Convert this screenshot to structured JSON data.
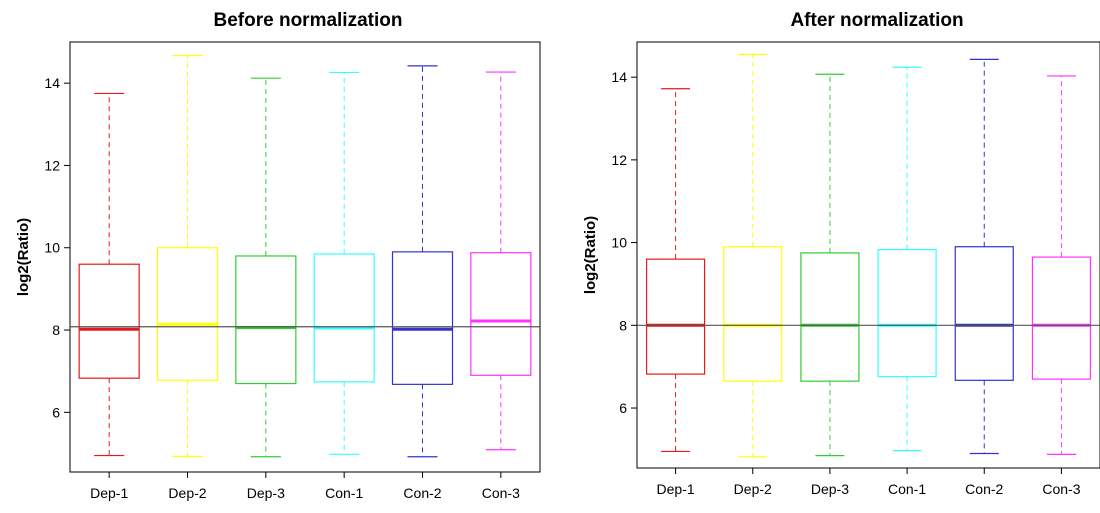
{
  "chart_data": [
    {
      "type": "box",
      "title": "Before normalization",
      "xlabel": "",
      "ylabel": "log2(Ratio)",
      "ylim": [
        4.55,
        15.0
      ],
      "yticks": [
        6,
        8,
        10,
        12,
        14
      ],
      "reference_line": 8.08,
      "categories": [
        "Dep-1",
        "Dep-2",
        "Dep-3",
        "Con-1",
        "Con-2",
        "Con-3"
      ],
      "colors": [
        "#e41a1c",
        "#ffff00",
        "#33cc33",
        "#33ffff",
        "#3333cc",
        "#ff33ff"
      ],
      "series": [
        {
          "min": 4.95,
          "q1": 6.83,
          "median": 8.02,
          "q3": 9.6,
          "max": 13.75
        },
        {
          "min": 4.93,
          "q1": 6.78,
          "median": 8.14,
          "q3": 10.0,
          "max": 14.67
        },
        {
          "min": 4.92,
          "q1": 6.7,
          "median": 8.06,
          "q3": 9.8,
          "max": 14.12
        },
        {
          "min": 4.98,
          "q1": 6.74,
          "median": 8.05,
          "q3": 9.85,
          "max": 14.26
        },
        {
          "min": 4.92,
          "q1": 6.68,
          "median": 8.02,
          "q3": 9.9,
          "max": 14.42
        },
        {
          "min": 5.09,
          "q1": 6.9,
          "median": 8.22,
          "q3": 9.88,
          "max": 14.27
        }
      ]
    },
    {
      "type": "box",
      "title": "After normalization",
      "xlabel": "",
      "ylabel": "log2(Ratio)",
      "ylim": [
        4.55,
        14.85
      ],
      "yticks": [
        6,
        8,
        10,
        12,
        14
      ],
      "reference_line": 8.0,
      "categories": [
        "Dep-1",
        "Dep-2",
        "Dep-3",
        "Con-1",
        "Con-2",
        "Con-3"
      ],
      "colors": [
        "#e41a1c",
        "#ffff00",
        "#33cc33",
        "#33ffff",
        "#3333cc",
        "#ff33ff"
      ],
      "series": [
        {
          "min": 4.95,
          "q1": 6.82,
          "median": 8.0,
          "q3": 9.6,
          "max": 13.72
        },
        {
          "min": 4.82,
          "q1": 6.65,
          "median": 8.0,
          "q3": 9.9,
          "max": 14.55
        },
        {
          "min": 4.85,
          "q1": 6.65,
          "median": 8.0,
          "q3": 9.75,
          "max": 14.07
        },
        {
          "min": 4.97,
          "q1": 6.76,
          "median": 8.0,
          "q3": 9.83,
          "max": 14.24
        },
        {
          "min": 4.9,
          "q1": 6.67,
          "median": 8.0,
          "q3": 9.9,
          "max": 14.43
        },
        {
          "min": 4.88,
          "q1": 6.7,
          "median": 8.0,
          "q3": 9.65,
          "max": 14.03
        }
      ]
    }
  ]
}
